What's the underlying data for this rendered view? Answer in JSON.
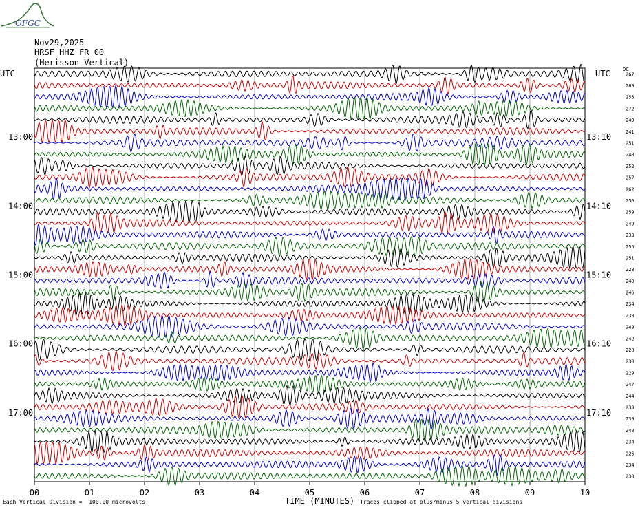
{
  "header": {
    "date": "Nov29,2025",
    "station": "HRSF HHZ FR 00",
    "channel": "(Herisson Vertical)",
    "utc_left": "UTC",
    "utc_right": "UTC",
    "dc_label": "DC",
    "logo_text": "OFGC"
  },
  "footer": {
    "scale_note": "Each Vertical Division =  100.00 microvolts",
    "clip_note": "Traces clipped at plus/minus 5 vertical divisions"
  },
  "colors": {
    "trace_cycle": [
      "#000000",
      "#cc0000",
      "#0000cc",
      "#006600"
    ],
    "grid": "#999999",
    "logo": "#2a6e2a",
    "logo_text": "#2a4fa8"
  },
  "chart_data": {
    "type": "line",
    "title": "HRSF HHZ FR 00",
    "xlabel": "TIME (MINUTES)",
    "x_ticks": [
      "00",
      "01",
      "02",
      "03",
      "04",
      "05",
      "06",
      "07",
      "08",
      "09",
      "10"
    ],
    "xlim": [
      0,
      10
    ],
    "minutes_per_row": 10,
    "rows": 36,
    "left_hour_labels": [
      {
        "row": 6,
        "label": "13:00"
      },
      {
        "row": 12,
        "label": "14:00"
      },
      {
        "row": 18,
        "label": "15:00"
      },
      {
        "row": 24,
        "label": "16:00"
      },
      {
        "row": 30,
        "label": "17:00"
      }
    ],
    "right_hour_labels": [
      {
        "row": 6,
        "label": "13:10"
      },
      {
        "row": 12,
        "label": "14:10"
      },
      {
        "row": 18,
        "label": "15:10"
      },
      {
        "row": 24,
        "label": "16:10"
      },
      {
        "row": 30,
        "label": "17:10"
      }
    ],
    "dc_offsets": [
      267,
      269,
      255,
      272,
      249,
      241,
      251,
      240,
      252,
      257,
      262,
      256,
      259,
      249,
      233,
      255,
      251,
      228,
      240,
      246,
      234,
      238,
      249,
      242,
      228,
      230,
      229,
      247,
      244,
      233,
      239,
      240,
      234,
      226,
      234,
      238
    ],
    "scale": "100.00 microvolts per vertical division",
    "clip": "plus/minus 5 vertical divisions"
  }
}
